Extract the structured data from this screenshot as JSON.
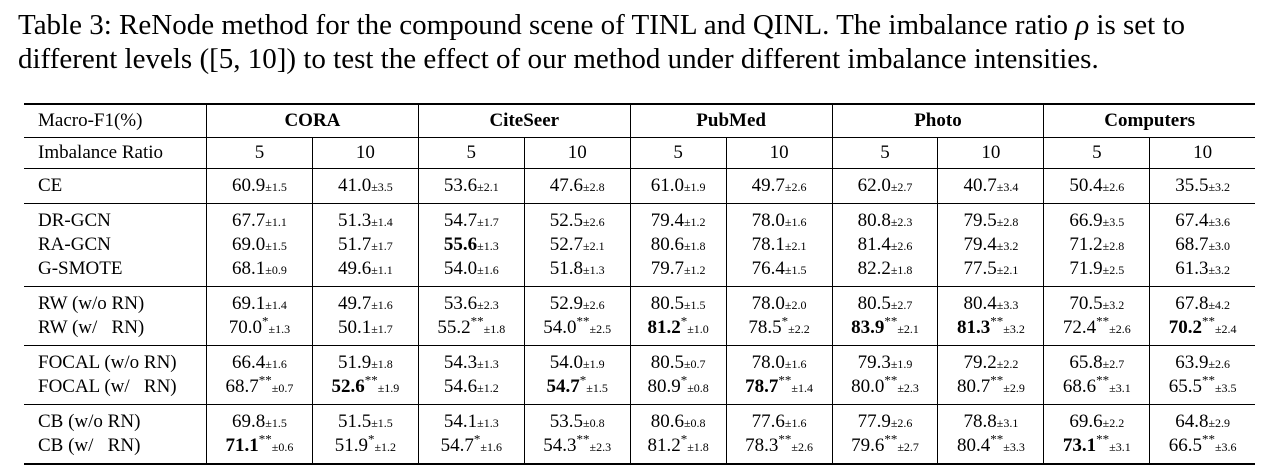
{
  "caption": {
    "line1_prefix": "Table 3: ReNode method for the compound scene of TINL and QINL. The imbalance ratio ",
    "rho": "ρ",
    "line1_suffix": " is set to",
    "line2": "different levels ([5, 10]) to test the effect of our method under different imbalance intensities."
  },
  "table": {
    "corner_label": "Macro-F1(%)",
    "ratio_label": "Imbalance Ratio",
    "datasets": [
      "CORA",
      "CiteSeer",
      "PubMed",
      "Photo",
      "Computers"
    ],
    "ratios": [
      "5",
      "10",
      "5",
      "10",
      "5",
      "10",
      "5",
      "10",
      "5",
      "10"
    ],
    "groups": [
      {
        "rows": [
          {
            "method": "CE",
            "cells": [
              {
                "v": "60.9",
                "s": "",
                "sd": "±1.5",
                "b": false
              },
              {
                "v": "41.0",
                "s": "",
                "sd": "±3.5",
                "b": false
              },
              {
                "v": "53.6",
                "s": "",
                "sd": "±2.1",
                "b": false
              },
              {
                "v": "47.6",
                "s": "",
                "sd": "±2.8",
                "b": false
              },
              {
                "v": "61.0",
                "s": "",
                "sd": "±1.9",
                "b": false
              },
              {
                "v": "49.7",
                "s": "",
                "sd": "±2.6",
                "b": false
              },
              {
                "v": "62.0",
                "s": "",
                "sd": "±2.7",
                "b": false
              },
              {
                "v": "40.7",
                "s": "",
                "sd": "±3.4",
                "b": false
              },
              {
                "v": "50.4",
                "s": "",
                "sd": "±2.6",
                "b": false
              },
              {
                "v": "35.5",
                "s": "",
                "sd": "±3.2",
                "b": false
              }
            ]
          }
        ]
      },
      {
        "rows": [
          {
            "method": "DR-GCN",
            "cells": [
              {
                "v": "67.7",
                "s": "",
                "sd": "±1.1",
                "b": false
              },
              {
                "v": "51.3",
                "s": "",
                "sd": "±1.4",
                "b": false
              },
              {
                "v": "54.7",
                "s": "",
                "sd": "±1.7",
                "b": false
              },
              {
                "v": "52.5",
                "s": "",
                "sd": "±2.6",
                "b": false
              },
              {
                "v": "79.4",
                "s": "",
                "sd": "±1.2",
                "b": false
              },
              {
                "v": "78.0",
                "s": "",
                "sd": "±1.6",
                "b": false
              },
              {
                "v": "80.8",
                "s": "",
                "sd": "±2.3",
                "b": false
              },
              {
                "v": "79.5",
                "s": "",
                "sd": "±2.8",
                "b": false
              },
              {
                "v": "66.9",
                "s": "",
                "sd": "±3.5",
                "b": false
              },
              {
                "v": "67.4",
                "s": "",
                "sd": "±3.6",
                "b": false
              }
            ]
          },
          {
            "method": "RA-GCN",
            "cells": [
              {
                "v": "69.0",
                "s": "",
                "sd": "±1.5",
                "b": false
              },
              {
                "v": "51.7",
                "s": "",
                "sd": "±1.7",
                "b": false
              },
              {
                "v": "55.6",
                "s": "",
                "sd": "±1.3",
                "b": true
              },
              {
                "v": "52.7",
                "s": "",
                "sd": "±2.1",
                "b": false
              },
              {
                "v": "80.6",
                "s": "",
                "sd": "±1.8",
                "b": false
              },
              {
                "v": "78.1",
                "s": "",
                "sd": "±2.1",
                "b": false
              },
              {
                "v": "81.4",
                "s": "",
                "sd": "±2.6",
                "b": false
              },
              {
                "v": "79.4",
                "s": "",
                "sd": "±3.2",
                "b": false
              },
              {
                "v": "71.2",
                "s": "",
                "sd": "±2.8",
                "b": false
              },
              {
                "v": "68.7",
                "s": "",
                "sd": "±3.0",
                "b": false
              }
            ]
          },
          {
            "method": "G-SMOTE",
            "cells": [
              {
                "v": "68.1",
                "s": "",
                "sd": "±0.9",
                "b": false
              },
              {
                "v": "49.6",
                "s": "",
                "sd": "±1.1",
                "b": false
              },
              {
                "v": "54.0",
                "s": "",
                "sd": "±1.6",
                "b": false
              },
              {
                "v": "51.8",
                "s": "",
                "sd": "±1.3",
                "b": false
              },
              {
                "v": "79.7",
                "s": "",
                "sd": "±1.2",
                "b": false
              },
              {
                "v": "76.4",
                "s": "",
                "sd": "±1.5",
                "b": false
              },
              {
                "v": "82.2",
                "s": "",
                "sd": "±1.8",
                "b": false
              },
              {
                "v": "77.5",
                "s": "",
                "sd": "±2.1",
                "b": false
              },
              {
                "v": "71.9",
                "s": "",
                "sd": "±2.5",
                "b": false
              },
              {
                "v": "61.3",
                "s": "",
                "sd": "±3.2",
                "b": false
              }
            ]
          }
        ]
      },
      {
        "rows": [
          {
            "method": "RW (w/o RN)",
            "cells": [
              {
                "v": "69.1",
                "s": "",
                "sd": "±1.4",
                "b": false
              },
              {
                "v": "49.7",
                "s": "",
                "sd": "±1.6",
                "b": false
              },
              {
                "v": "53.6",
                "s": "",
                "sd": "±2.3",
                "b": false
              },
              {
                "v": "52.9",
                "s": "",
                "sd": "±2.6",
                "b": false
              },
              {
                "v": "80.5",
                "s": "",
                "sd": "±1.5",
                "b": false
              },
              {
                "v": "78.0",
                "s": "",
                "sd": "±2.0",
                "b": false
              },
              {
                "v": "80.5",
                "s": "",
                "sd": "±2.7",
                "b": false
              },
              {
                "v": "80.4",
                "s": "",
                "sd": "±3.3",
                "b": false
              },
              {
                "v": "70.5",
                "s": "",
                "sd": "±3.2",
                "b": false
              },
              {
                "v": "67.8",
                "s": "",
                "sd": "±4.2",
                "b": false
              }
            ]
          },
          {
            "method": "RW (w/   RN)",
            "cells": [
              {
                "v": "70.0",
                "s": "*",
                "sd": "±1.3",
                "b": false
              },
              {
                "v": "50.1",
                "s": "",
                "sd": "±1.7",
                "b": false
              },
              {
                "v": "55.2",
                "s": "**",
                "sd": "±1.8",
                "b": false
              },
              {
                "v": "54.0",
                "s": "**",
                "sd": "±2.5",
                "b": false
              },
              {
                "v": "81.2",
                "s": "*",
                "sd": "±1.0",
                "b": true
              },
              {
                "v": "78.5",
                "s": "*",
                "sd": "±2.2",
                "b": false
              },
              {
                "v": "83.9",
                "s": "**",
                "sd": "±2.1",
                "b": true
              },
              {
                "v": "81.3",
                "s": "**",
                "sd": "±3.2",
                "b": true
              },
              {
                "v": "72.4",
                "s": "**",
                "sd": "±2.6",
                "b": false
              },
              {
                "v": "70.2",
                "s": "**",
                "sd": "±2.4",
                "b": true
              }
            ]
          }
        ]
      },
      {
        "rows": [
          {
            "method": "FOCAL (w/o RN)",
            "cells": [
              {
                "v": "66.4",
                "s": "",
                "sd": "±1.6",
                "b": false
              },
              {
                "v": "51.9",
                "s": "",
                "sd": "±1.8",
                "b": false
              },
              {
                "v": "54.3",
                "s": "",
                "sd": "±1.3",
                "b": false
              },
              {
                "v": "54.0",
                "s": "",
                "sd": "±1.9",
                "b": false
              },
              {
                "v": "80.5",
                "s": "",
                "sd": "±0.7",
                "b": false
              },
              {
                "v": "78.0",
                "s": "",
                "sd": "±1.6",
                "b": false
              },
              {
                "v": "79.3",
                "s": "",
                "sd": "±1.9",
                "b": false
              },
              {
                "v": "79.2",
                "s": "",
                "sd": "±2.2",
                "b": false
              },
              {
                "v": "65.8",
                "s": "",
                "sd": "±2.7",
                "b": false
              },
              {
                "v": "63.9",
                "s": "",
                "sd": "±2.6",
                "b": false
              }
            ]
          },
          {
            "method": "FOCAL (w/   RN)",
            "cells": [
              {
                "v": "68.7",
                "s": "**",
                "sd": "±0.7",
                "b": false
              },
              {
                "v": "52.6",
                "s": "**",
                "sd": "±1.9",
                "b": true
              },
              {
                "v": "54.6",
                "s": "",
                "sd": "±1.2",
                "b": false
              },
              {
                "v": "54.7",
                "s": "*",
                "sd": "±1.5",
                "b": true
              },
              {
                "v": "80.9",
                "s": "*",
                "sd": "±0.8",
                "b": false
              },
              {
                "v": "78.7",
                "s": "**",
                "sd": "±1.4",
                "b": true
              },
              {
                "v": "80.0",
                "s": "**",
                "sd": "±2.3",
                "b": false
              },
              {
                "v": "80.7",
                "s": "**",
                "sd": "±2.9",
                "b": false
              },
              {
                "v": "68.6",
                "s": "**",
                "sd": "±3.1",
                "b": false
              },
              {
                "v": "65.5",
                "s": "**",
                "sd": "±3.5",
                "b": false
              }
            ]
          }
        ]
      },
      {
        "rows": [
          {
            "method": "CB (w/o RN)",
            "cells": [
              {
                "v": "69.8",
                "s": "",
                "sd": "±1.5",
                "b": false
              },
              {
                "v": "51.5",
                "s": "",
                "sd": "±1.5",
                "b": false
              },
              {
                "v": "54.1",
                "s": "",
                "sd": "±1.3",
                "b": false
              },
              {
                "v": "53.5",
                "s": "",
                "sd": "±0.8",
                "b": false
              },
              {
                "v": "80.6",
                "s": "",
                "sd": "±0.8",
                "b": false
              },
              {
                "v": "77.6",
                "s": "",
                "sd": "±1.6",
                "b": false
              },
              {
                "v": "77.9",
                "s": "",
                "sd": "±2.6",
                "b": false
              },
              {
                "v": "78.8",
                "s": "",
                "sd": "±3.1",
                "b": false
              },
              {
                "v": "69.6",
                "s": "",
                "sd": "±2.2",
                "b": false
              },
              {
                "v": "64.8",
                "s": "",
                "sd": "±2.9",
                "b": false
              }
            ]
          },
          {
            "method": "CB (w/   RN)",
            "cells": [
              {
                "v": "71.1",
                "s": "**",
                "sd": "±0.6",
                "b": true
              },
              {
                "v": "51.9",
                "s": "*",
                "sd": "±1.2",
                "b": false
              },
              {
                "v": "54.7",
                "s": "*",
                "sd": "±1.6",
                "b": false
              },
              {
                "v": "54.3",
                "s": "**",
                "sd": "±2.3",
                "b": false
              },
              {
                "v": "81.2",
                "s": "*",
                "sd": "±1.8",
                "b": false
              },
              {
                "v": "78.3",
                "s": "**",
                "sd": "±2.6",
                "b": false
              },
              {
                "v": "79.6",
                "s": "**",
                "sd": "±2.7",
                "b": false
              },
              {
                "v": "80.4",
                "s": "**",
                "sd": "±3.3",
                "b": false
              },
              {
                "v": "73.1",
                "s": "**",
                "sd": "±3.1",
                "b": true
              },
              {
                "v": "66.5",
                "s": "**",
                "sd": "±3.6",
                "b": false
              }
            ]
          }
        ]
      }
    ]
  }
}
